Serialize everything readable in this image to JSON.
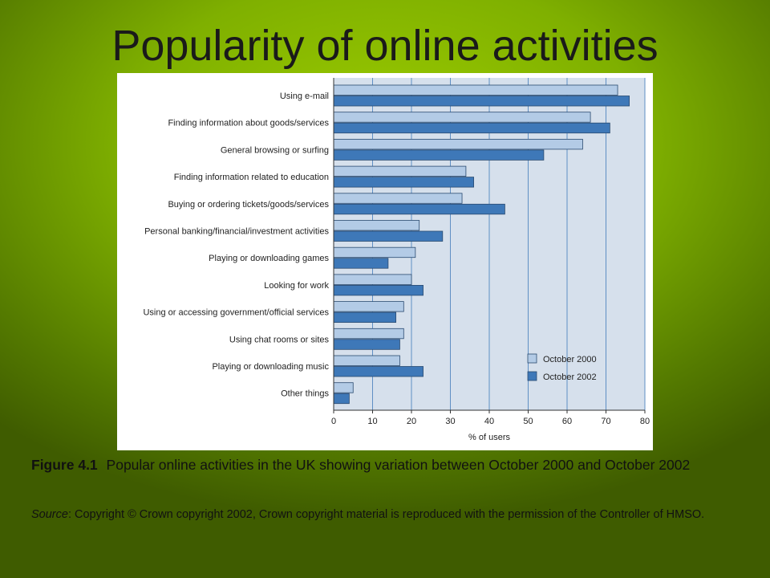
{
  "slide": {
    "title": "Popularity of online activities"
  },
  "caption": {
    "figure_number": "Figure 4.1",
    "text": "Popular online activities in the UK showing variation between October 2000 and October 2002"
  },
  "source": {
    "label": "Source",
    "text": ": Copyright © Crown copyright 2002, Crown copyright material is reproduced with the permission of the Controller of HMSO."
  },
  "colors": {
    "series_2000": "#b3cbe6",
    "series_2002": "#3e78b8",
    "plot_background": "#d6e0ec",
    "gridline": "#5f8fc4"
  },
  "chart_data": {
    "type": "bar",
    "orientation": "horizontal",
    "title": "",
    "xlabel": "% of users",
    "ylabel": "",
    "xlim": [
      0,
      80
    ],
    "x_ticks": [
      0,
      10,
      20,
      30,
      40,
      50,
      60,
      70,
      80
    ],
    "grid": true,
    "legend_position": "bottom-right",
    "categories": [
      "Using e-mail",
      "Finding information about goods/services",
      "General browsing or surfing",
      "Finding information related to education",
      "Buying or ordering tickets/goods/services",
      "Personal banking/financial/investment activities",
      "Playing or downloading games",
      "Looking for work",
      "Using or accessing government/official services",
      "Using chat rooms or sites",
      "Playing or downloading music",
      "Other things"
    ],
    "series": [
      {
        "name": "October 2000",
        "values": [
          73,
          66,
          64,
          34,
          33,
          22,
          21,
          20,
          18,
          18,
          17,
          5
        ]
      },
      {
        "name": "October 2002",
        "values": [
          76,
          71,
          54,
          36,
          44,
          28,
          14,
          23,
          16,
          17,
          23,
          4
        ]
      }
    ]
  }
}
